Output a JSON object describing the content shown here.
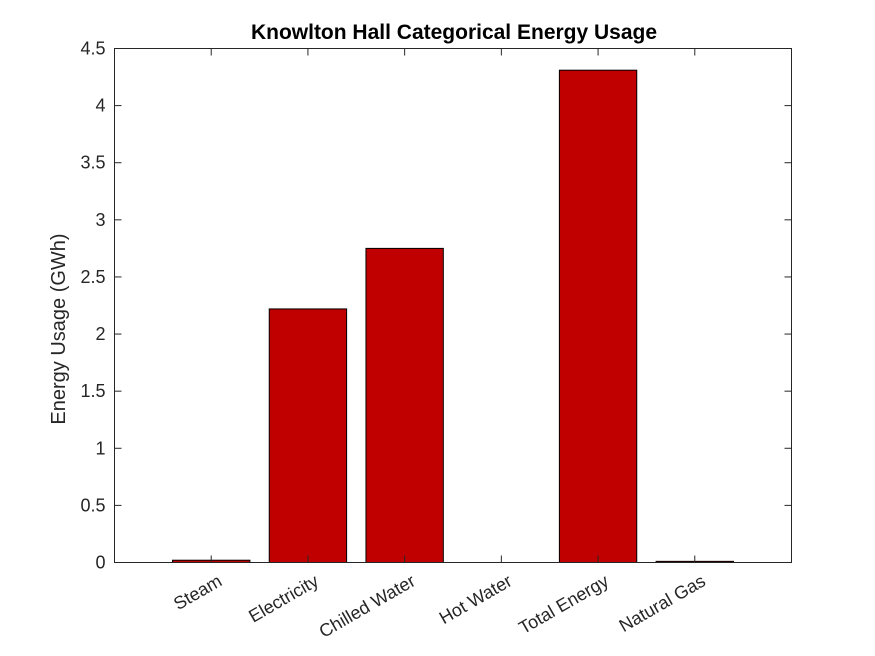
{
  "chart_data": {
    "type": "bar",
    "title": "Knowlton Hall Categorical Energy Usage",
    "xlabel": "",
    "ylabel": "Energy Usage (GWh)",
    "categories": [
      "Steam",
      "Electricity",
      "Chilled Water",
      "Hot Water",
      "Total Energy",
      "Natural Gas"
    ],
    "values": [
      0.02,
      2.22,
      2.75,
      0,
      4.31,
      0.01
    ],
    "ylim": [
      0,
      4.5
    ],
    "yticks": [
      "0",
      "0.5",
      "1",
      "1.5",
      "2",
      "2.5",
      "3",
      "3.5",
      "4",
      "4.5"
    ],
    "bar_color": "#c00000",
    "grid": false,
    "box": true
  }
}
